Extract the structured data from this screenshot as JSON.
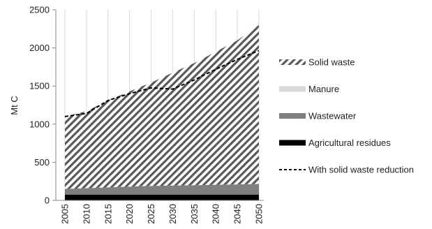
{
  "chart_data": {
    "type": "area",
    "stacked": true,
    "ylabel": "Mt C",
    "xlabel": "",
    "title": "",
    "ylim": [
      0,
      2500
    ],
    "yticks": [
      0,
      500,
      1000,
      1500,
      2000,
      2500
    ],
    "x": [
      2005,
      2010,
      2015,
      2020,
      2025,
      2030,
      2035,
      2040,
      2045,
      2050
    ],
    "grid": "vertical",
    "legend_position": "right",
    "series": [
      {
        "name": "Agricultural residues",
        "style": "solid-black",
        "color": "#000000",
        "values": [
          75,
          75,
          75,
          75,
          75,
          75,
          75,
          75,
          75,
          75
        ]
      },
      {
        "name": "Wastewater",
        "style": "solid-gray",
        "color": "#7f7f7f",
        "values": [
          75,
          85,
          95,
          105,
          115,
          120,
          125,
          130,
          135,
          140
        ]
      },
      {
        "name": "Manure",
        "style": "solid-lightgray",
        "color": "#d9d9d9",
        "values": [
          0,
          0,
          0,
          0,
          0,
          0,
          0,
          0,
          0,
          0
        ]
      },
      {
        "name": "Solid waste",
        "style": "diagonal-hatch",
        "color": "#595959",
        "values": [
          950,
          1010,
          1140,
          1250,
          1355,
          1480,
          1600,
          1745,
          1890,
          2085
        ]
      }
    ],
    "line_series": {
      "name": "With solid waste  reduction",
      "style": "dashed",
      "color": "#000000",
      "values": [
        1100,
        1140,
        1310,
        1400,
        1475,
        1460,
        1580,
        1720,
        1850,
        1965
      ]
    },
    "legend_order": [
      "Solid waste",
      "Manure",
      "Wastewater",
      "Agricultural residues",
      "With solid waste  reduction"
    ]
  }
}
